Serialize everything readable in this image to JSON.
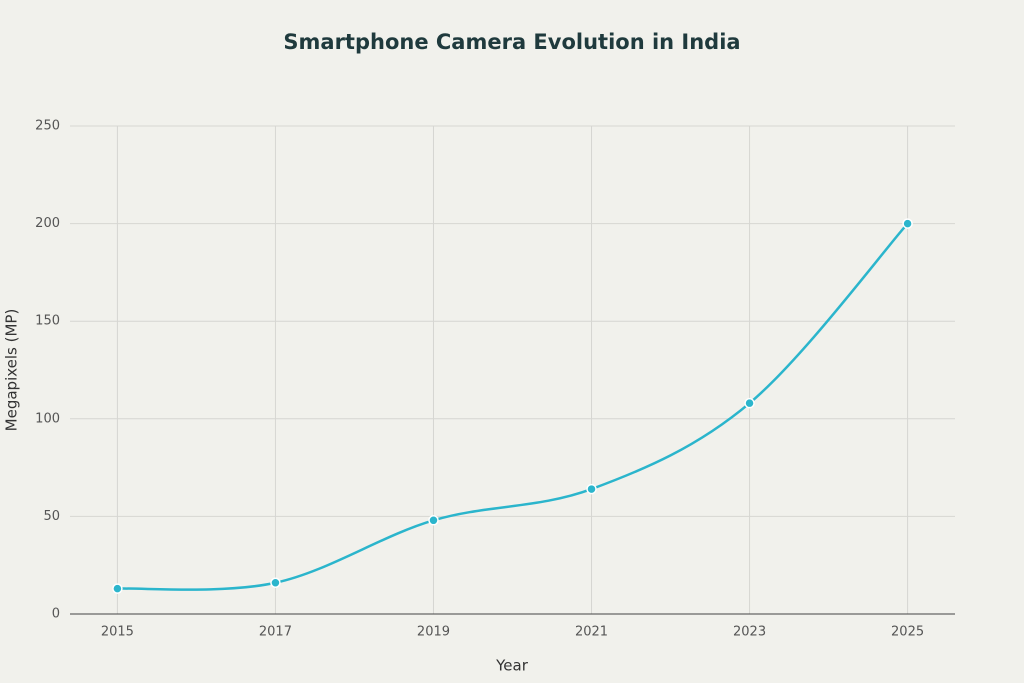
{
  "chart_data": {
    "type": "line",
    "title": "Smartphone Camera Evolution in India",
    "x_label": "Year",
    "y_label": "Megapixels (MP)",
    "x": [
      2015,
      2017,
      2019,
      2021,
      2023,
      2025
    ],
    "series": [
      {
        "color": "#2bb5cc",
        "values": [
          13,
          16,
          48,
          64,
          108,
          200
        ]
      }
    ],
    "xlim": [
      2014.4,
      2025.6
    ],
    "xticks": [
      2015,
      2017,
      2019,
      2021,
      2023,
      2025
    ],
    "ylim": [
      0,
      250
    ],
    "yticks": [
      0,
      50,
      100,
      150,
      200,
      250
    ],
    "grid": true,
    "smooth": true
  }
}
